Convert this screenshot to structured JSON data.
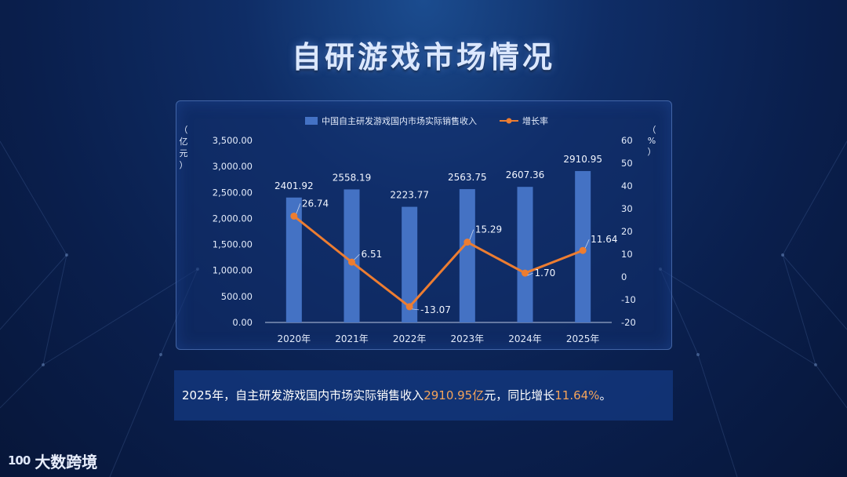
{
  "page": {
    "title": "自研游戏市场情况",
    "logo_mark": "100",
    "logo_text": "大数跨境"
  },
  "summary": {
    "prefix": "2025年，自主研发游戏国内市场实际销售收入",
    "value": "2910.95亿",
    "middle": "元，同比增长",
    "rate": "11.64%",
    "suffix": "。"
  },
  "colors": {
    "bar": "#4472c4",
    "line": "#ed7d31",
    "highlight": "#f5a45a"
  },
  "chart_data": {
    "type": "bar",
    "categories": [
      "2020年",
      "2021年",
      "2022年",
      "2023年",
      "2024年",
      "2025年"
    ],
    "series": [
      {
        "name": "中国自主研发游戏国内市场实际销售收入",
        "type": "bar",
        "axis": "left",
        "values": [
          2401.92,
          2558.19,
          2223.77,
          2563.75,
          2607.36,
          2910.95
        ],
        "labels": [
          "2401.92",
          "2558.19",
          "2223.77",
          "2563.75",
          "2607.36",
          "2910.95"
        ]
      },
      {
        "name": "增长率",
        "type": "line",
        "axis": "right",
        "values": [
          26.74,
          6.51,
          -13.07,
          15.29,
          1.7,
          11.64
        ],
        "labels": [
          "26.74",
          "6.51",
          "-13.07",
          "15.29",
          "1.70",
          "11.64"
        ]
      }
    ],
    "y_left": {
      "label": [
        "（",
        "亿",
        "元",
        "）"
      ],
      "range": [
        0,
        3500
      ],
      "ticks": [
        "0.00",
        "500.00",
        "1,000.00",
        "1,500.00",
        "2,000.00",
        "2,500.00",
        "3,000.00",
        "3,500.00"
      ]
    },
    "y_right": {
      "label": [
        "（",
        "%",
        "）"
      ],
      "range": [
        -20,
        60
      ],
      "ticks": [
        "-20",
        "-10",
        "0",
        "10",
        "20",
        "30",
        "40",
        "50",
        "60"
      ]
    },
    "legend_position": "top"
  }
}
